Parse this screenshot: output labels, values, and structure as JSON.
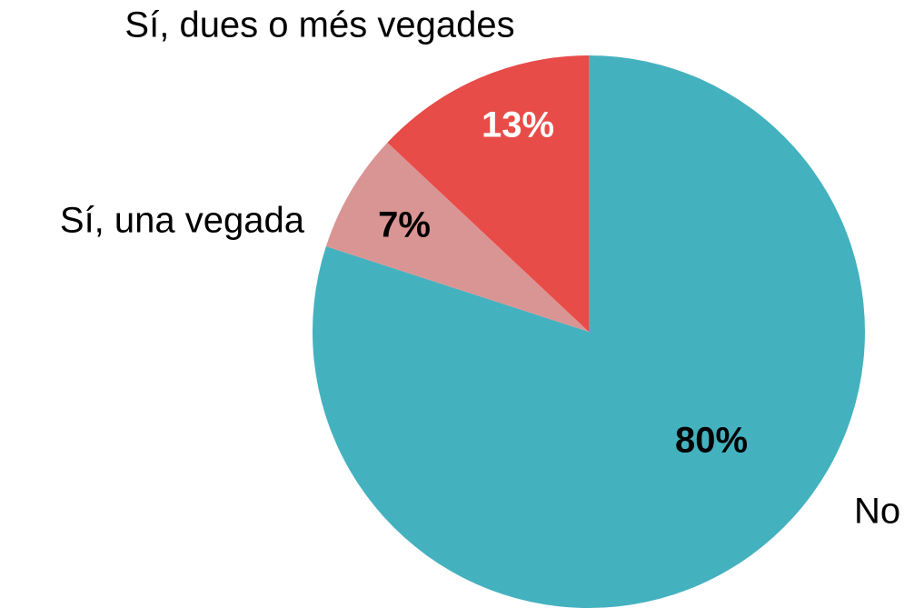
{
  "chart_data": {
    "type": "pie",
    "categories": [
      "No",
      "Sí, una vegada",
      "Sí, dues o més vegades"
    ],
    "values": [
      80,
      7,
      13
    ],
    "value_labels": [
      "80%",
      "7%",
      "13%"
    ],
    "colors": [
      "#44b1bf",
      "#d99594",
      "#e84c48"
    ],
    "label_colors": [
      "#000000",
      "#000000",
      "#ffffff"
    ],
    "start_angle": 0,
    "direction": "clockwise"
  }
}
